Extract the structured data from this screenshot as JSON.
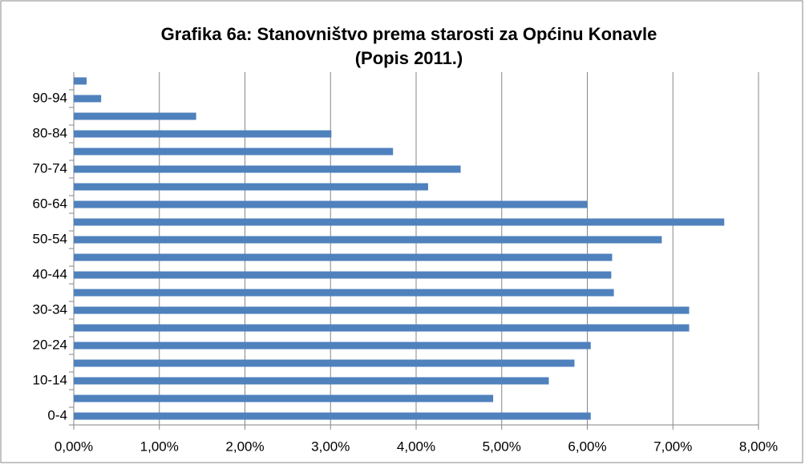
{
  "chart_data": {
    "type": "bar",
    "orientation": "horizontal",
    "title": [
      "Grafika 6a: Stanovništvo prema starosti za Općinu Konavle",
      "(Popis 2011.)"
    ],
    "categories": [
      "0-4",
      null,
      "10-14",
      null,
      "20-24",
      null,
      "30-34",
      null,
      "40-44",
      null,
      "50-54",
      null,
      "60-64",
      null,
      "70-74",
      null,
      "80-84",
      null,
      "90-94",
      null
    ],
    "values": [
      6.04,
      4.9,
      5.55,
      5.85,
      6.04,
      7.19,
      7.19,
      6.31,
      6.28,
      6.29,
      6.87,
      7.6,
      6.0,
      4.14,
      4.52,
      3.73,
      3.01,
      1.43,
      0.32,
      0.15
    ],
    "color": "#4f81bd",
    "xlim": [
      0,
      8
    ],
    "xticks": [
      {
        "value": 0,
        "label": "0,00%"
      },
      {
        "value": 1,
        "label": "1,00%"
      },
      {
        "value": 2,
        "label": "2,00%"
      },
      {
        "value": 3,
        "label": "3,00%"
      },
      {
        "value": 4,
        "label": "4,00%"
      },
      {
        "value": 5,
        "label": "5,00%"
      },
      {
        "value": 6,
        "label": "6,00%"
      },
      {
        "value": 7,
        "label": "7,00%"
      },
      {
        "value": 8,
        "label": "8,00%"
      }
    ],
    "grid": true
  }
}
